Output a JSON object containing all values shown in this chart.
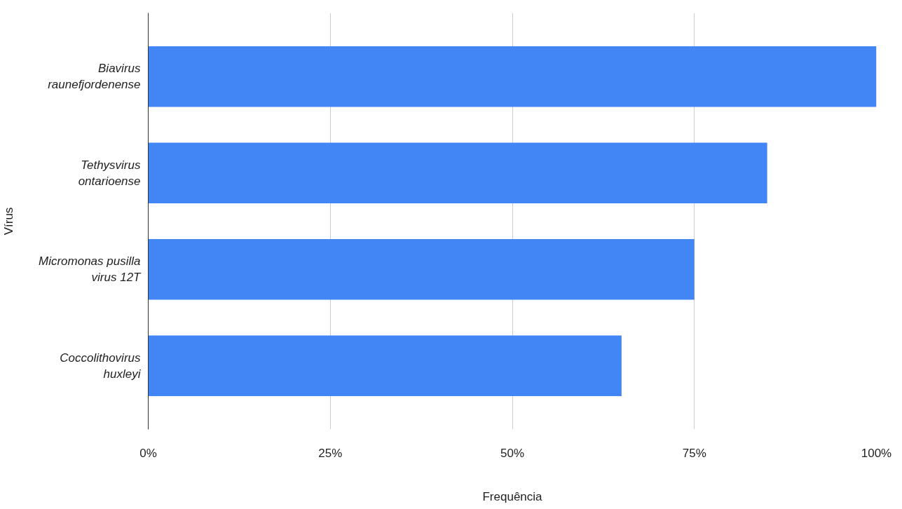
{
  "chart_data": {
    "type": "bar",
    "orientation": "horizontal",
    "xlabel": "Frequência",
    "ylabel": "Vírus",
    "categories": [
      "Biavirus\nraunefjordenense",
      "Tethysvirus\nontarioense",
      "Micromonas pusilla\nvirus 12T",
      "Coccolithovirus\nhuxleyi"
    ],
    "values": [
      100,
      85,
      75,
      65
    ],
    "color": "#4285f4",
    "xlim": [
      0,
      100
    ],
    "xticks": [
      {
        "value": 0,
        "label": "0%"
      },
      {
        "value": 25,
        "label": "25%"
      },
      {
        "value": 50,
        "label": "50%"
      },
      {
        "value": 75,
        "label": "75%"
      },
      {
        "value": 100,
        "label": "100%"
      }
    ],
    "grid": "x"
  }
}
